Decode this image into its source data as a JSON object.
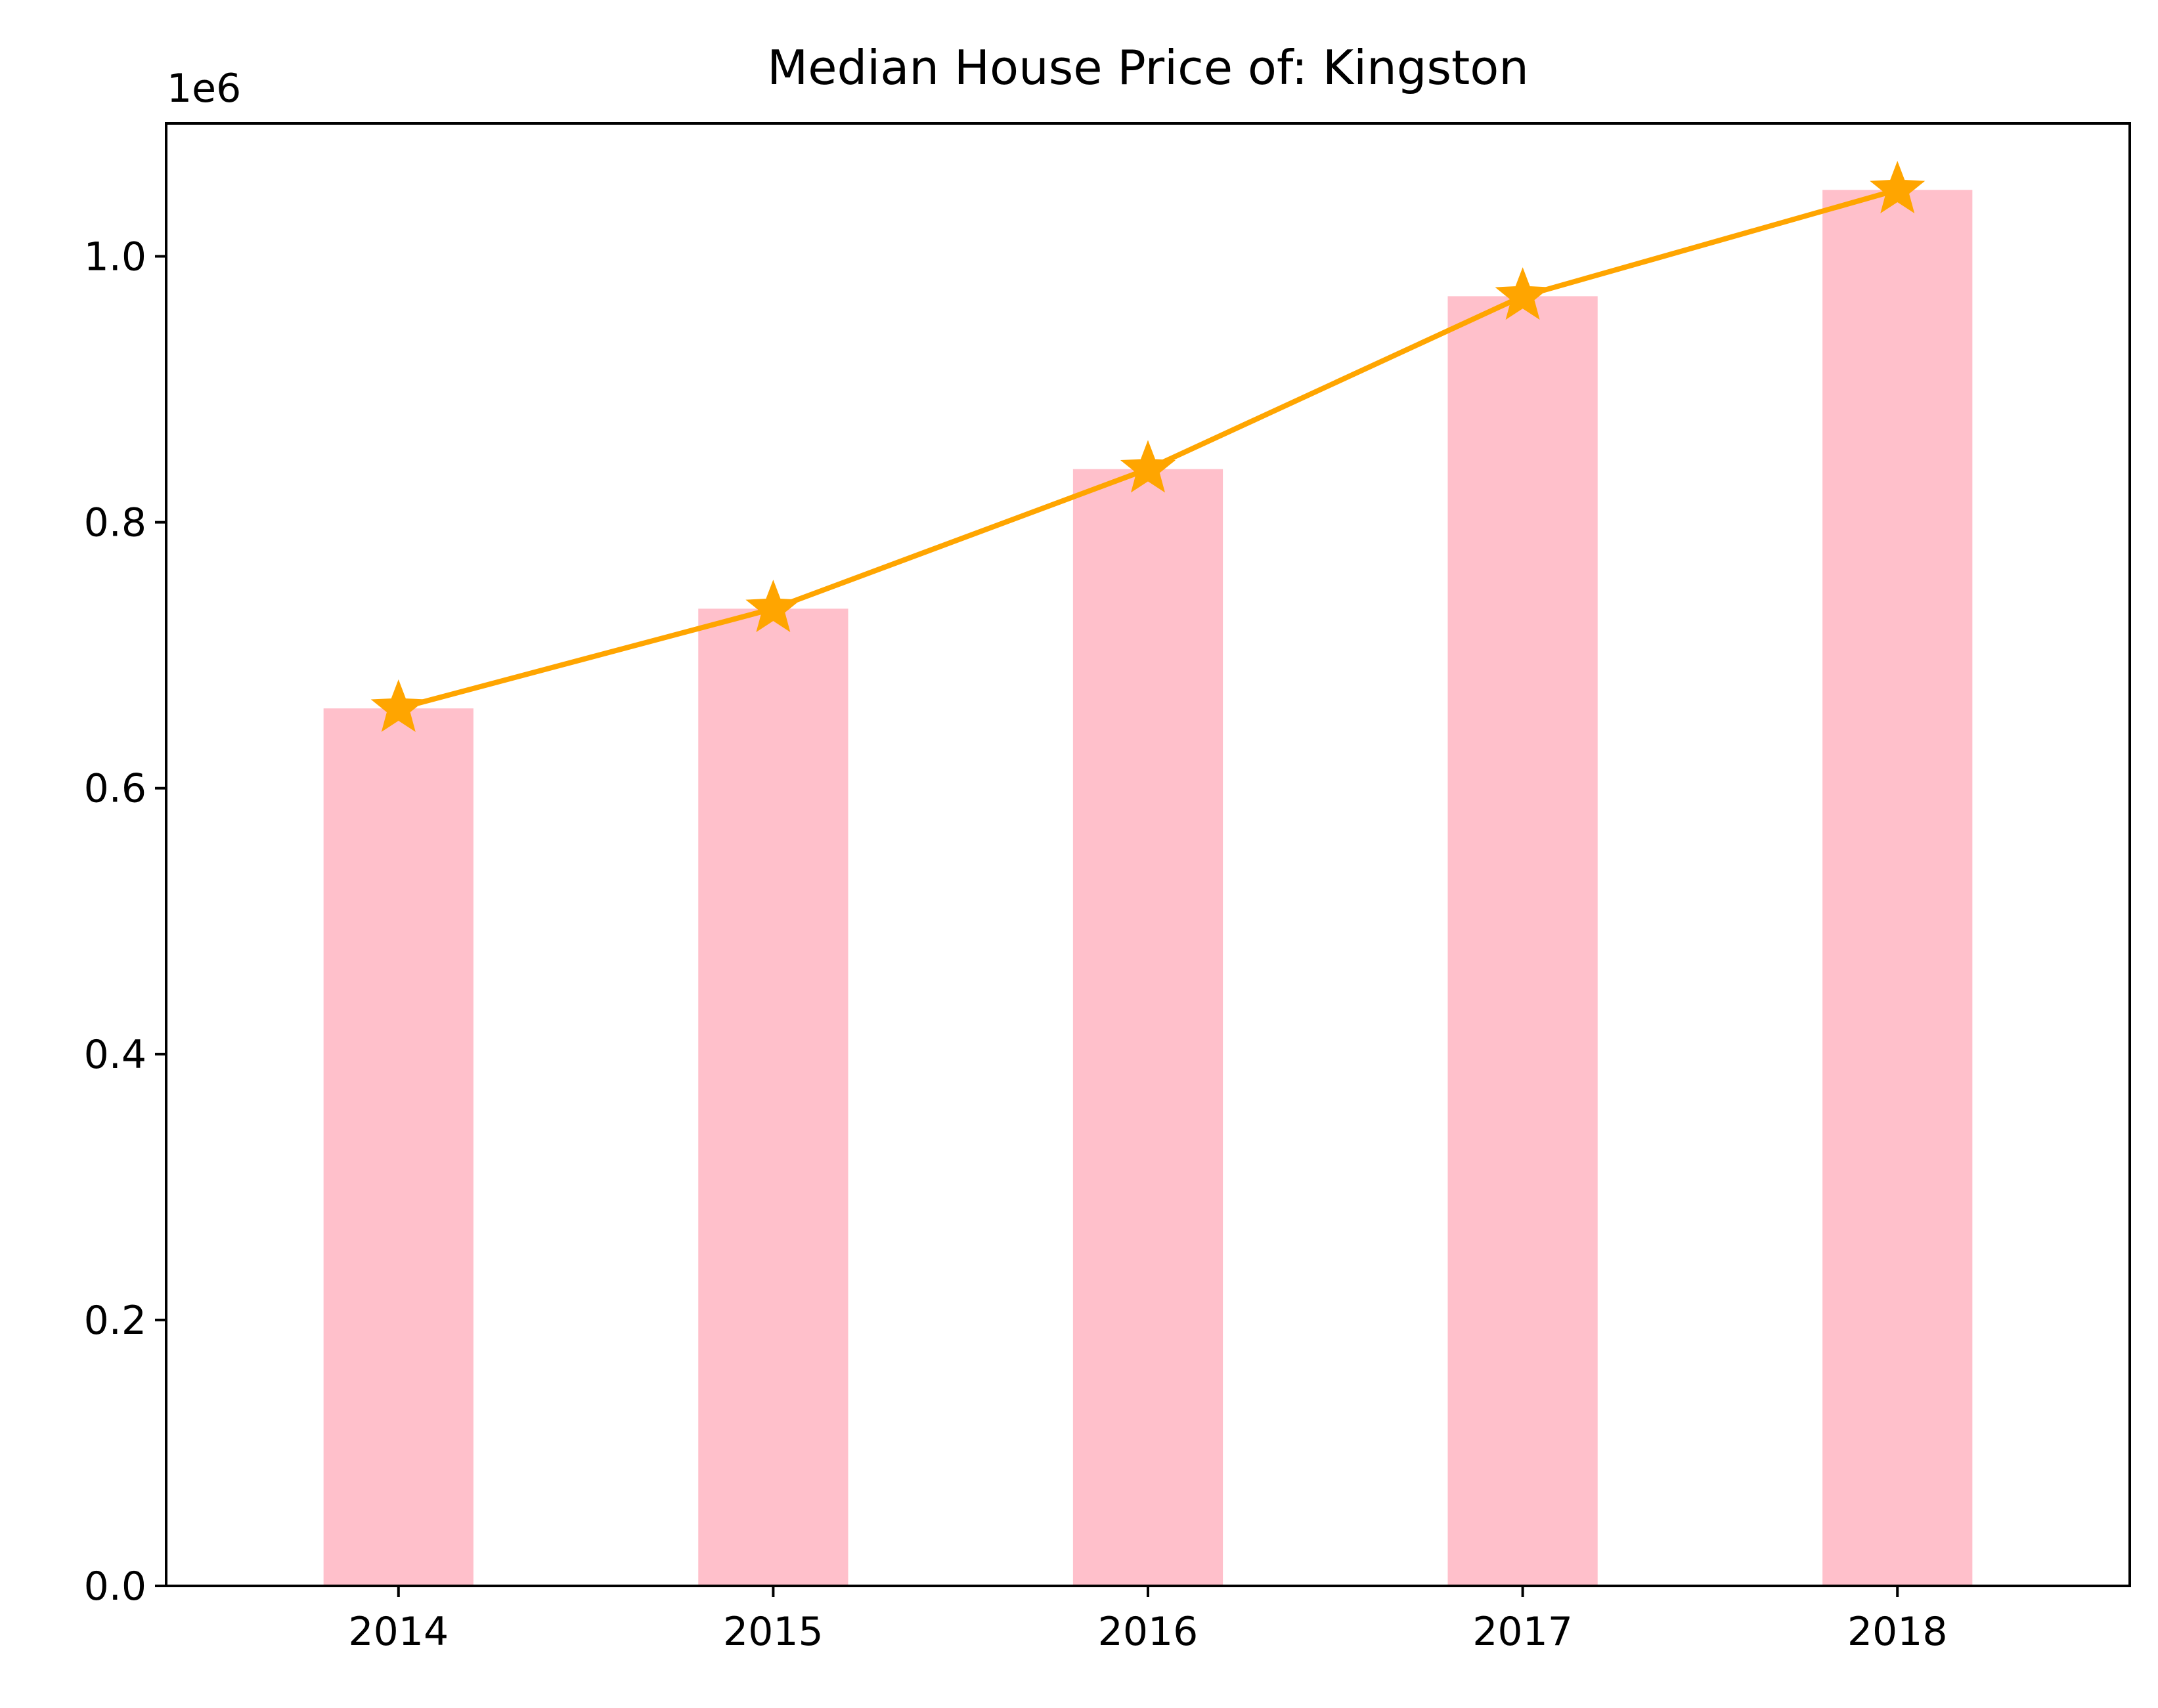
{
  "chart_data": {
    "type": "bar",
    "title": "Median House Price of: Kingston",
    "xlabel": "",
    "ylabel": "",
    "y_offset_label": "1e6",
    "categories": [
      "2014",
      "2015",
      "2016",
      "2017",
      "2018"
    ],
    "series": [
      {
        "type": "bar",
        "values": [
          660000,
          735000,
          840000,
          970000,
          1050000
        ],
        "color": "#ffc0cb"
      },
      {
        "type": "line",
        "marker": "star",
        "values": [
          660000,
          735000,
          840000,
          970000,
          1050000
        ],
        "color": "#ffa500"
      }
    ],
    "ylim": [
      0,
      1100000
    ],
    "yticks": [
      {
        "value": 0,
        "label": "0.0"
      },
      {
        "value": 200000,
        "label": "0.2"
      },
      {
        "value": 400000,
        "label": "0.4"
      },
      {
        "value": 600000,
        "label": "0.6"
      },
      {
        "value": 800000,
        "label": "0.8"
      },
      {
        "value": 1000000,
        "label": "1.0"
      }
    ],
    "grid": false,
    "legend": "none"
  }
}
